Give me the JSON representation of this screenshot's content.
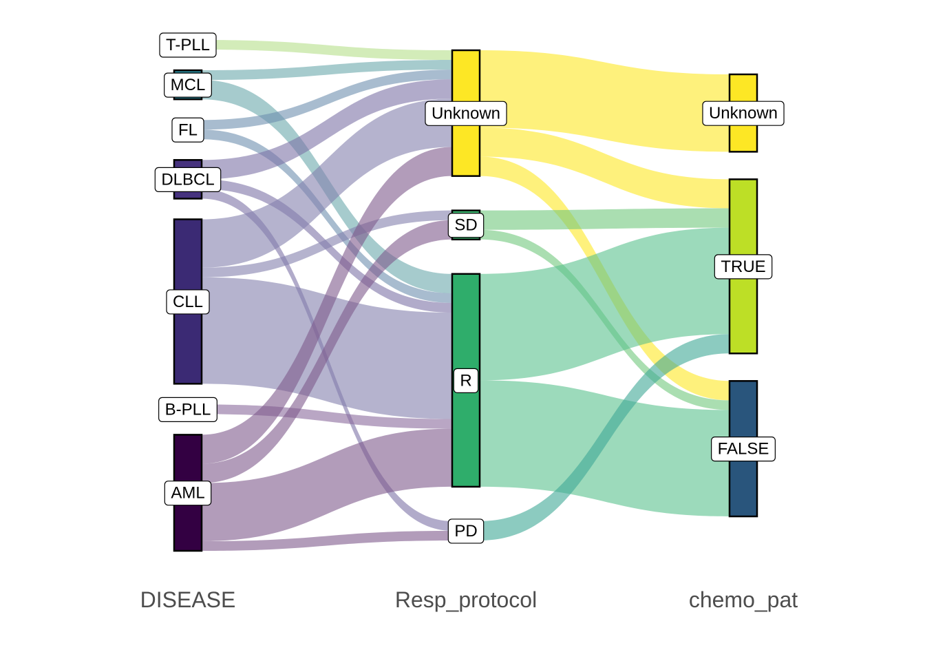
{
  "diagram": {
    "type": "alluvial",
    "axes": [
      {
        "name": "DISEASE"
      },
      {
        "name": "Resp_protocol"
      },
      {
        "name": "chemo_pat"
      }
    ],
    "nodes": [
      {
        "id": "T-PLL",
        "axis": 0,
        "label": "T-PLL",
        "color": "#a0da39"
      },
      {
        "id": "MCL",
        "axis": 0,
        "label": "MCL",
        "color": "#277f8e"
      },
      {
        "id": "FL",
        "axis": 0,
        "label": "FL",
        "color": "#365c8d"
      },
      {
        "id": "DLBCL",
        "axis": 0,
        "label": "DLBCL",
        "color": "#46327e"
      },
      {
        "id": "CLL",
        "axis": 0,
        "label": "CLL",
        "color": "#3b2a74"
      },
      {
        "id": "B-PLL",
        "axis": 0,
        "label": "B-PLL",
        "color": "#48186a"
      },
      {
        "id": "AML",
        "axis": 0,
        "label": "AML",
        "color": "#330042"
      },
      {
        "id": "R_Unknown",
        "axis": 1,
        "label": "Unknown",
        "color": "#fde725"
      },
      {
        "id": "R_SD",
        "axis": 1,
        "label": "SD",
        "color": "#3fbc73"
      },
      {
        "id": "R_R",
        "axis": 1,
        "label": "R",
        "color": "#2fad6b"
      },
      {
        "id": "R_PD",
        "axis": 1,
        "label": "PD",
        "color": "#1f9e89"
      },
      {
        "id": "C_Unknown",
        "axis": 2,
        "label": "Unknown",
        "color": "#fde725"
      },
      {
        "id": "C_TRUE",
        "axis": 2,
        "label": "TRUE",
        "color": "#bddf26"
      },
      {
        "id": "C_FALSE",
        "axis": 2,
        "label": "FALSE",
        "color": "#29557c"
      }
    ],
    "flows": [
      {
        "from": "T-PLL",
        "to": "R_Unknown",
        "value": 1,
        "color": "#b5e08a"
      },
      {
        "from": "MCL",
        "to": "R_Unknown",
        "value": 1,
        "color": "#6aa9ab"
      },
      {
        "from": "MCL",
        "to": "R_R",
        "value": 2,
        "color": "#6aa9ab"
      },
      {
        "from": "FL",
        "to": "R_Unknown",
        "value": 1,
        "color": "#6e8faf"
      },
      {
        "from": "FL",
        "to": "R_R",
        "value": 1,
        "color": "#6e8faf"
      },
      {
        "from": "DLBCL",
        "to": "R_Unknown",
        "value": 2,
        "color": "#7d73a6"
      },
      {
        "from": "DLBCL",
        "to": "R_R",
        "value": 1,
        "color": "#7d73a6"
      },
      {
        "from": "DLBCL",
        "to": "R_PD",
        "value": 1,
        "color": "#7d73a6"
      },
      {
        "from": "CLL",
        "to": "R_Unknown",
        "value": 5,
        "color": "#8480ae"
      },
      {
        "from": "CLL",
        "to": "R_SD",
        "value": 1,
        "color": "#8480ae"
      },
      {
        "from": "CLL",
        "to": "R_R",
        "value": 11,
        "color": "#8480ae"
      },
      {
        "from": "B-PLL",
        "to": "R_R",
        "value": 1,
        "color": "#8a6a9c"
      },
      {
        "from": "AML",
        "to": "R_Unknown",
        "value": 3,
        "color": "#7f5a8c"
      },
      {
        "from": "AML",
        "to": "R_SD",
        "value": 2,
        "color": "#7f5a8c"
      },
      {
        "from": "AML",
        "to": "R_R",
        "value": 6,
        "color": "#7f5a8c"
      },
      {
        "from": "AML",
        "to": "R_PD",
        "value": 1,
        "color": "#7f5a8c"
      },
      {
        "from": "R_Unknown",
        "to": "C_Unknown",
        "value": 8,
        "color": "#fde725"
      },
      {
        "from": "R_Unknown",
        "to": "C_TRUE",
        "value": 3,
        "color": "#fde725"
      },
      {
        "from": "R_Unknown",
        "to": "C_FALSE",
        "value": 2,
        "color": "#fde725"
      },
      {
        "from": "R_SD",
        "to": "C_TRUE",
        "value": 2,
        "color": "#72c87d"
      },
      {
        "from": "R_SD",
        "to": "C_FALSE",
        "value": 1,
        "color": "#72c87d"
      },
      {
        "from": "R_R",
        "to": "C_TRUE",
        "value": 11,
        "color": "#5ac18e"
      },
      {
        "from": "R_R",
        "to": "C_FALSE",
        "value": 11,
        "color": "#5ac18e"
      },
      {
        "from": "R_PD",
        "to": "C_TRUE",
        "value": 2,
        "color": "#3fa896"
      }
    ]
  }
}
